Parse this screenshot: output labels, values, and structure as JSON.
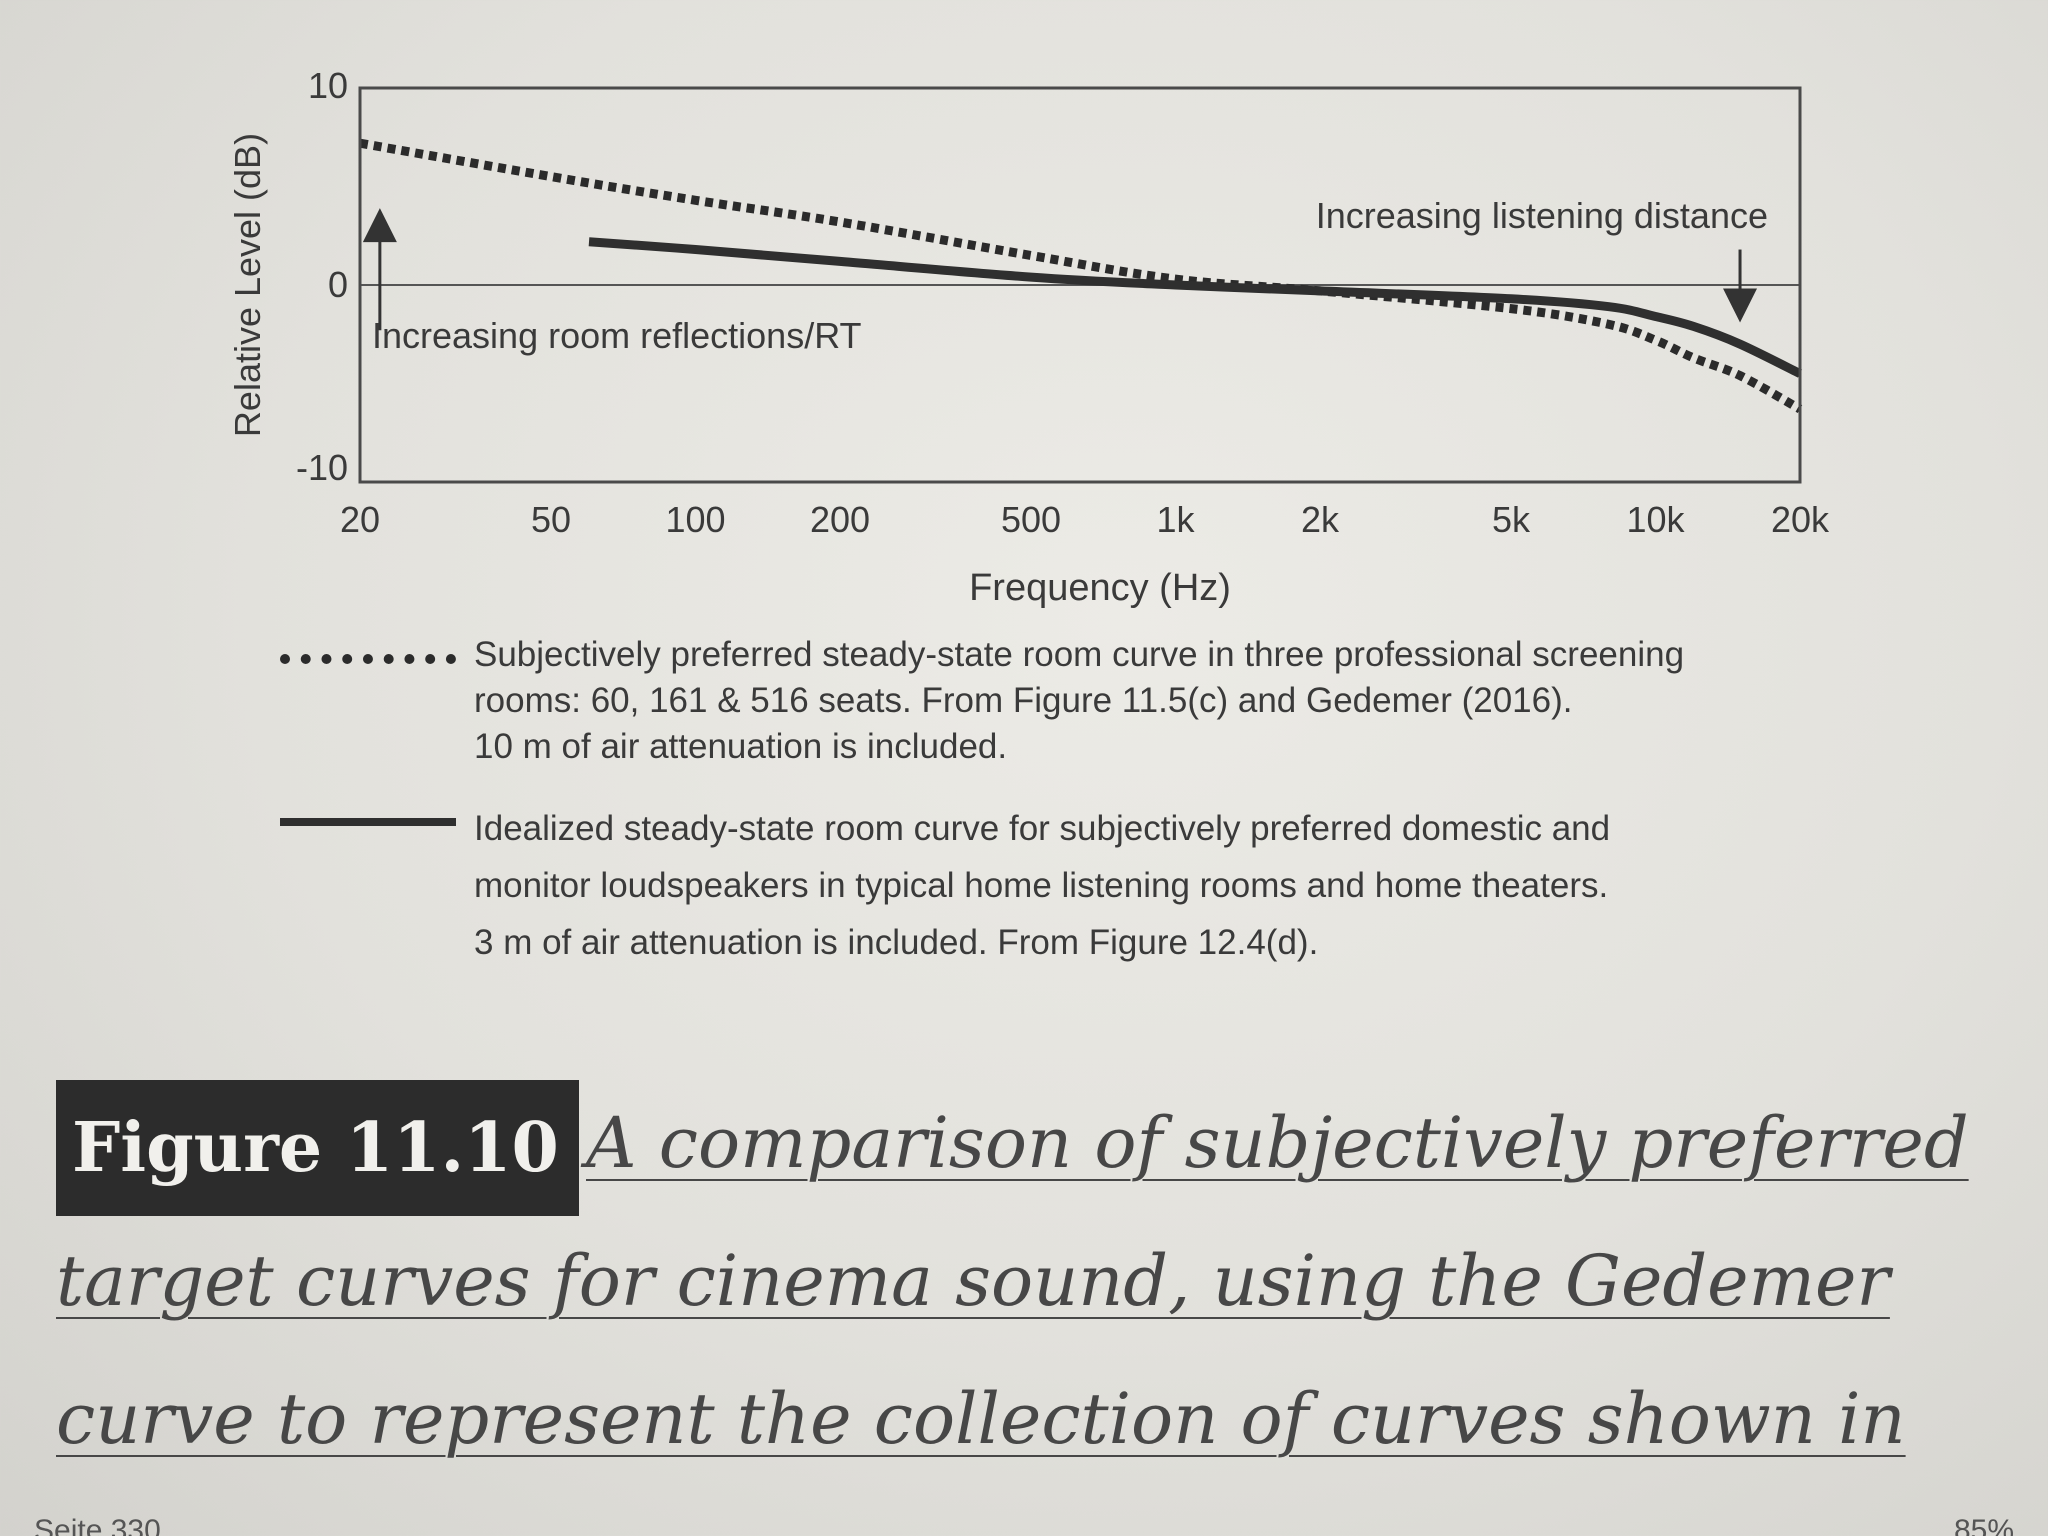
{
  "chart_data": {
    "type": "line",
    "xlabel": "Frequency (Hz)",
    "ylabel": "Relative Level (dB)",
    "x_scale": "log",
    "xlim": [
      20,
      20000
    ],
    "ylim": [
      -10,
      10
    ],
    "x_ticks": [
      20,
      50,
      100,
      200,
      500,
      1000,
      2000,
      5000,
      10000,
      20000
    ],
    "x_tick_labels": [
      "20",
      "50",
      "100",
      "200",
      "500",
      "1k",
      "2k",
      "5k",
      "10k",
      "20k"
    ],
    "y_ticks": [
      10,
      0,
      -10
    ],
    "y_tick_labels": [
      "10",
      "0",
      "-10"
    ],
    "grid": "zero line only",
    "series": [
      {
        "style": "dotted",
        "x": [
          20,
          50,
          100,
          200,
          500,
          1000,
          2000,
          5000,
          8000,
          10000,
          12000,
          15000,
          20000
        ],
        "y": [
          7.2,
          5.5,
          4.3,
          3.2,
          1.5,
          0.3,
          -0.3,
          -1.2,
          -2.0,
          -2.8,
          -3.7,
          -4.6,
          -6.3
        ]
      },
      {
        "style": "solid",
        "x": [
          60,
          100,
          200,
          500,
          1000,
          2000,
          5000,
          8000,
          10000,
          12000,
          15000,
          20000
        ],
        "y": [
          2.2,
          1.8,
          1.2,
          0.4,
          0.0,
          -0.3,
          -0.7,
          -1.1,
          -1.6,
          -2.1,
          -3.0,
          -4.5
        ]
      }
    ],
    "annotations": [
      {
        "text": "Increasing room reflections/RT",
        "arrow": "up",
        "x": 22,
        "y_from": -2.3,
        "y_to": 3.6
      },
      {
        "text": "Increasing listening distance",
        "arrow": "down",
        "x": 15000,
        "y_from": 1.8,
        "y_to": -1.6
      }
    ],
    "legend": {
      "placement": "below",
      "entries": [
        {
          "style": "dotted",
          "lines": [
            "Subjectively preferred steady-state room curve in three professional screening",
            "rooms: 60, 161 & 516 seats. From Figure 11.5(c) and Gedemer (2016).",
            "10 m of air attenuation is included."
          ]
        },
        {
          "style": "solid",
          "lines": [
            "Idealized steady-state room curve for subjectively preferred domestic and",
            "monitor loudspeakers in typical home listening rooms and home theaters.",
            "3 m of air attenuation is included. From Figure 12.4(d)."
          ]
        }
      ]
    },
    "colors": {
      "line": "#2f2f2f",
      "frame": "#4a4a4a",
      "text": "#3a3a3a"
    }
  },
  "caption": {
    "label": "Figure 11.10",
    "lines": [
      "A comparison of subjectively preferred",
      "target curves for cinema sound, using the Gedemer",
      "curve to represent the collection of curves shown in"
    ]
  },
  "footer": {
    "left": "Seite 330",
    "right": "85%"
  }
}
